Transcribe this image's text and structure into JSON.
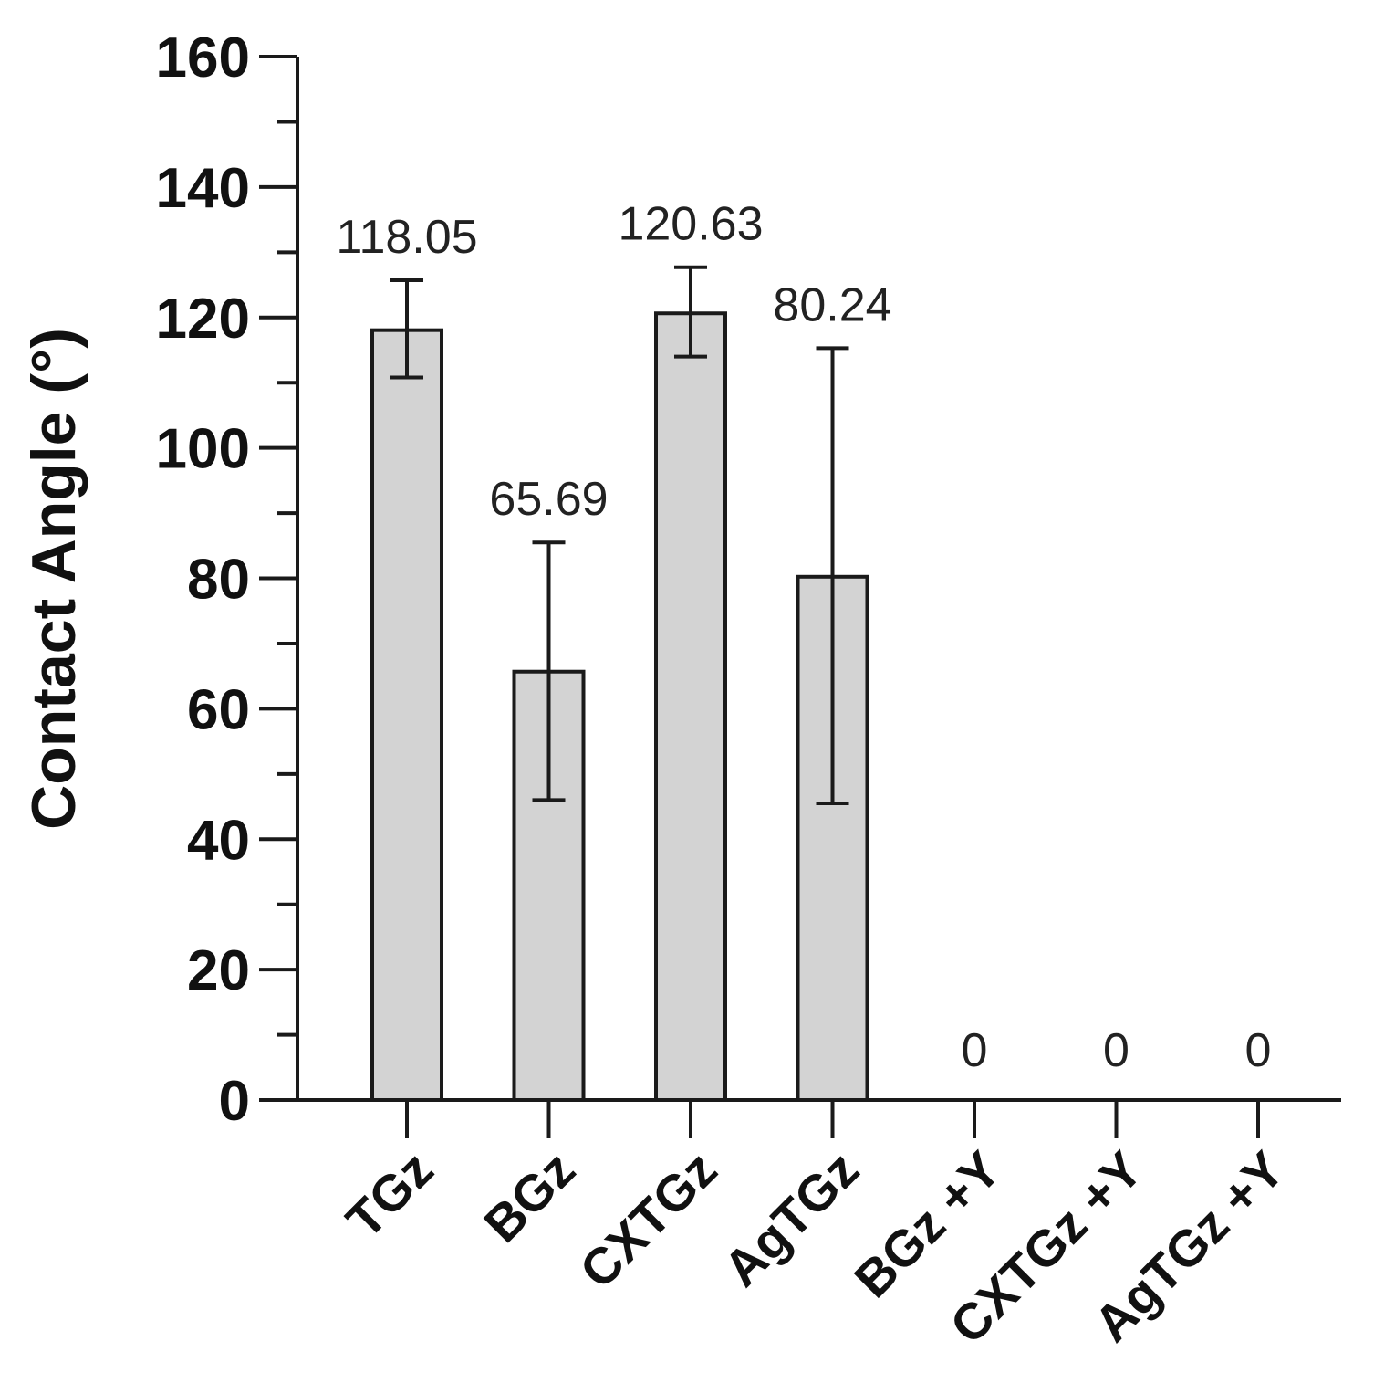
{
  "chart_data": {
    "type": "bar",
    "categories": [
      "TGz",
      "BGz",
      "CXTGz",
      "AgTGz",
      "BGz +Y",
      "CXTGz +Y",
      "AgTGz +Y"
    ],
    "values": [
      118.05,
      65.69,
      120.63,
      80.24,
      0,
      0,
      0
    ],
    "error_low": [
      110.8,
      46.0,
      114.0,
      45.5,
      0,
      0,
      0
    ],
    "error_high": [
      125.7,
      85.5,
      127.7,
      115.3,
      0,
      0,
      0
    ],
    "data_labels": [
      "118.05",
      "65.69",
      "120.63",
      "80.24",
      "0",
      "0",
      "0"
    ],
    "title": "",
    "xlabel": "",
    "ylabel": "Contact Angle (°)",
    "ylim": [
      0,
      160
    ],
    "yticks": [
      0,
      20,
      40,
      60,
      80,
      100,
      120,
      140,
      160
    ],
    "ytick_labels": [
      "0",
      "20",
      "40",
      "60",
      "80",
      "100",
      "120",
      "140",
      "160"
    ],
    "bar_color": "#d3d3d3",
    "edge_color": "#1a1a1a",
    "grid": false,
    "legend": "none"
  }
}
